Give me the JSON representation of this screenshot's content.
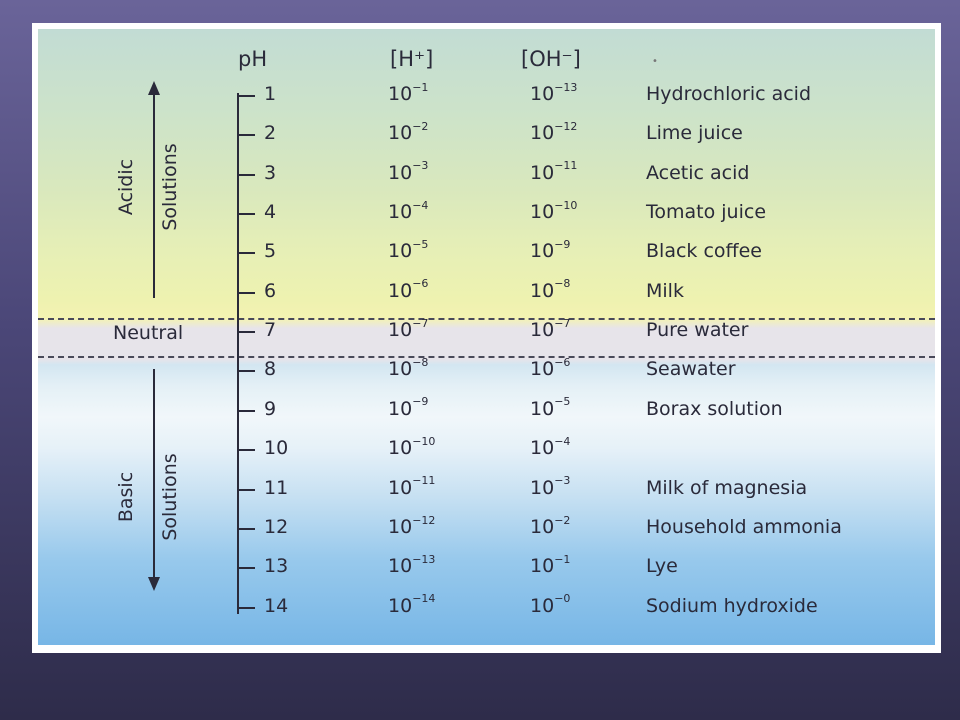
{
  "table": {
    "headers": {
      "ph": "pH",
      "h": "[H⁺]",
      "oh": "[OH⁻]"
    },
    "rows": [
      {
        "ph": "1",
        "h_exp": "−1",
        "oh_exp": "−13",
        "substance": "Hydrochloric acid"
      },
      {
        "ph": "2",
        "h_exp": "−2",
        "oh_exp": "−12",
        "substance": "Lime juice"
      },
      {
        "ph": "3",
        "h_exp": "−3",
        "oh_exp": "−11",
        "substance": "Acetic acid"
      },
      {
        "ph": "4",
        "h_exp": "−4",
        "oh_exp": "−10",
        "substance": "Tomato juice"
      },
      {
        "ph": "5",
        "h_exp": "−5",
        "oh_exp": "−9",
        "substance": "Black coffee"
      },
      {
        "ph": "6",
        "h_exp": "−6",
        "oh_exp": "−8",
        "substance": "Milk"
      },
      {
        "ph": "7",
        "h_exp": "−7",
        "oh_exp": "−7",
        "substance": "Pure water"
      },
      {
        "ph": "8",
        "h_exp": "−8",
        "oh_exp": "−6",
        "substance": "Seawater"
      },
      {
        "ph": "9",
        "h_exp": "−9",
        "oh_exp": "−5",
        "substance": "Borax solution"
      },
      {
        "ph": "10",
        "h_exp": "−10",
        "oh_exp": "−4",
        "substance": ""
      },
      {
        "ph": "11",
        "h_exp": "−11",
        "oh_exp": "−3",
        "substance": "Milk of magnesia"
      },
      {
        "ph": "12",
        "h_exp": "−12",
        "oh_exp": "−2",
        "substance": "Household ammonia"
      },
      {
        "ph": "13",
        "h_exp": "−13",
        "oh_exp": "−1",
        "substance": "Lye"
      },
      {
        "ph": "14",
        "h_exp": "−14",
        "oh_exp": "−0",
        "substance": "Sodium hydroxide"
      }
    ],
    "base": "10"
  },
  "regions": {
    "acidic": {
      "line1": "Acidic",
      "line2": "Solutions"
    },
    "neutral": "Neutral",
    "basic": {
      "line1": "Basic",
      "line2": "Solutions"
    }
  },
  "colors": {
    "slide_background": "#4b4778",
    "acid_zone": "#eef2b0",
    "neutral_zone": "#e7e4ea",
    "base_zone": "#77b6e6",
    "ink": "#2a2a3a"
  }
}
